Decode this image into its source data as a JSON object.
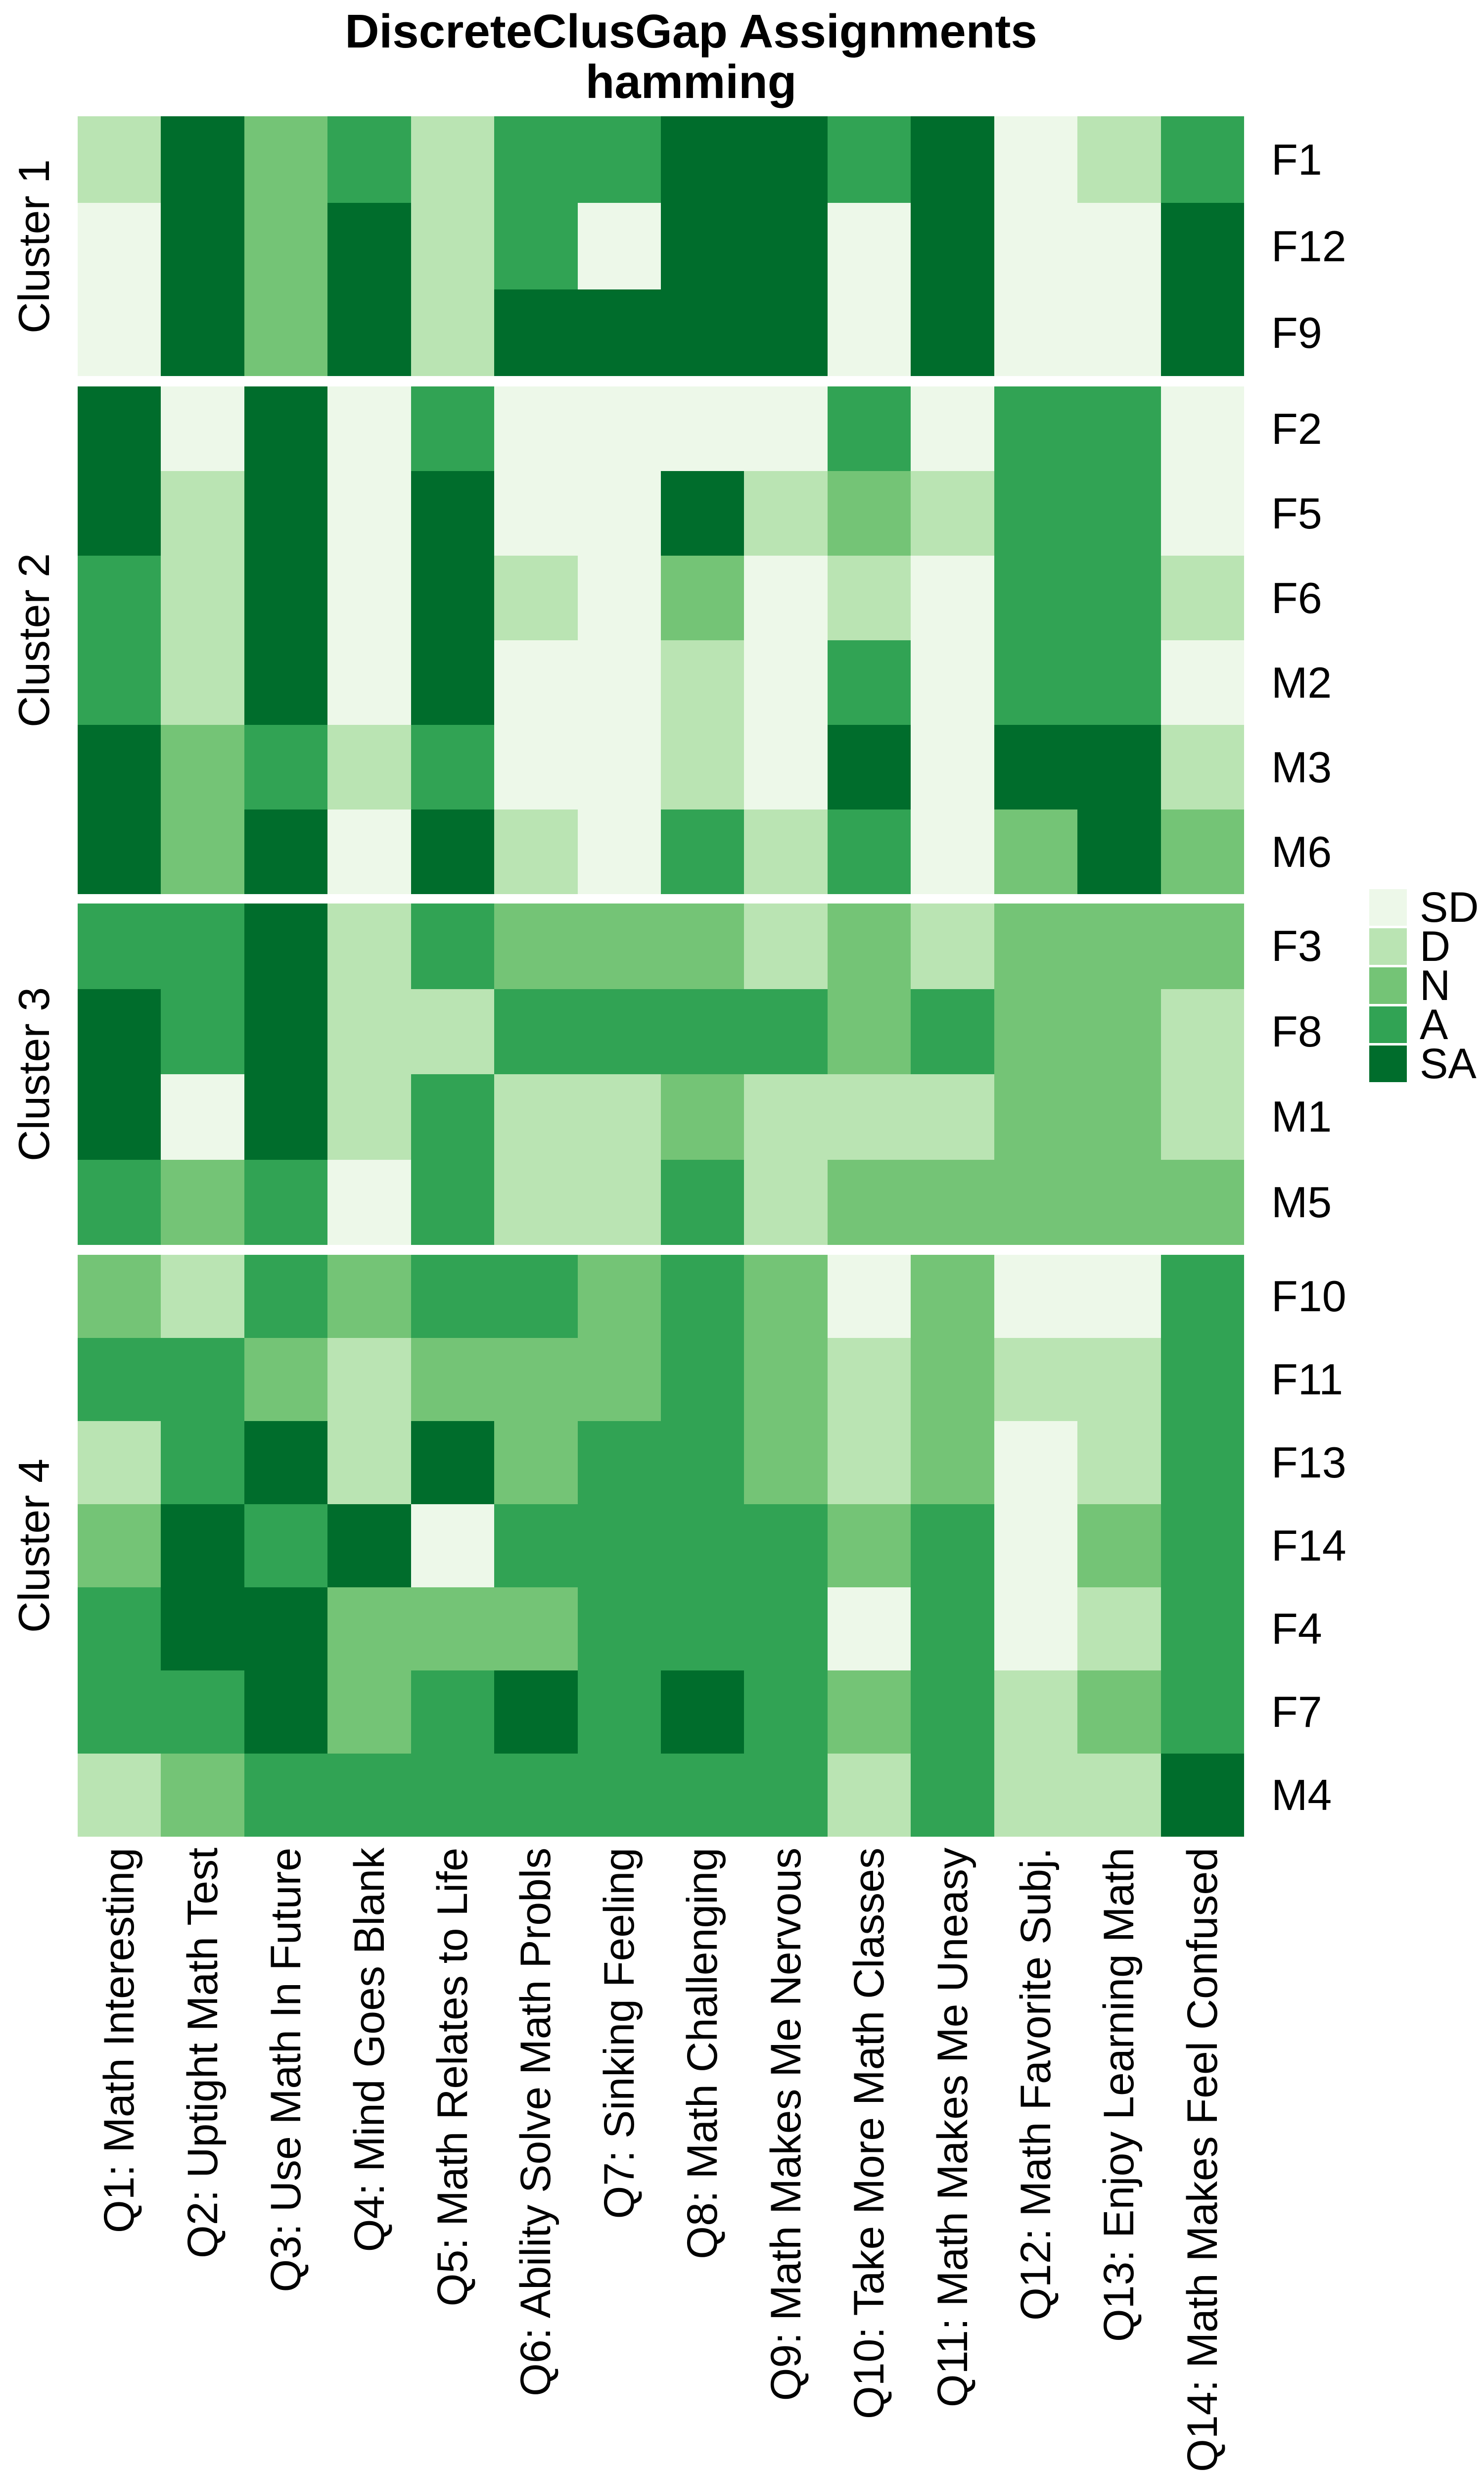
{
  "title": {
    "line1": "DiscreteClusGap Assignments",
    "line2": "hamming"
  },
  "chart_data": {
    "type": "heatmap",
    "title": "DiscreteClusGap Assignments",
    "subtitle": "hamming",
    "value_scale": [
      "SD",
      "D",
      "N",
      "A",
      "SA"
    ],
    "colors": {
      "SD": "#EDF8E9",
      "D": "#BAE4B3",
      "N": "#74C476",
      "A": "#31A354",
      "SA": "#006D2C"
    },
    "legend": {
      "position": "right",
      "labels": [
        "SD",
        "D",
        "N",
        "A",
        "SA"
      ]
    },
    "x_labels": [
      "Q1: Math Interesting",
      "Q2: Uptight Math Test",
      "Q3: Use Math In Future",
      "Q4: Mind Goes Blank",
      "Q5: Math Relates to Life",
      "Q6: Ability Solve Math Probls",
      "Q7: Sinking Feeling",
      "Q8: Math Challenging",
      "Q9: Math Makes Me Nervous",
      "Q10: Take More Math Classes",
      "Q11: Math Makes Me Uneasy",
      "Q12: Math Favorite Subj.",
      "Q13: Enjoy Learning Math",
      "Q14: Math Makes Feel Confused"
    ],
    "clusters": [
      {
        "name": "Cluster 1",
        "rows": [
          {
            "id": "F1",
            "values": [
              "D",
              "SA",
              "N",
              "A",
              "D",
              "A",
              "A",
              "SA",
              "SA",
              "A",
              "SA",
              "SD",
              "D",
              "A"
            ]
          },
          {
            "id": "F12",
            "values": [
              "SD",
              "SA",
              "N",
              "SA",
              "D",
              "A",
              "SD",
              "SA",
              "SA",
              "SD",
              "SA",
              "SD",
              "SD",
              "SA"
            ]
          },
          {
            "id": "F9",
            "values": [
              "SD",
              "SA",
              "N",
              "SA",
              "D",
              "SA",
              "SA",
              "SA",
              "SA",
              "SD",
              "SA",
              "SD",
              "SD",
              "SA"
            ]
          }
        ]
      },
      {
        "name": "Cluster 2",
        "rows": [
          {
            "id": "F2",
            "values": [
              "SA",
              "SD",
              "SA",
              "SD",
              "A",
              "SD",
              "SD",
              "SD",
              "SD",
              "A",
              "SD",
              "A",
              "A",
              "SD"
            ]
          },
          {
            "id": "F5",
            "values": [
              "SA",
              "D",
              "SA",
              "SD",
              "SA",
              "SD",
              "SD",
              "SA",
              "D",
              "N",
              "D",
              "A",
              "A",
              "SD"
            ]
          },
          {
            "id": "F6",
            "values": [
              "A",
              "D",
              "SA",
              "SD",
              "SA",
              "D",
              "SD",
              "N",
              "SD",
              "D",
              "SD",
              "A",
              "A",
              "D"
            ]
          },
          {
            "id": "M2",
            "values": [
              "A",
              "D",
              "SA",
              "SD",
              "SA",
              "SD",
              "SD",
              "D",
              "SD",
              "A",
              "SD",
              "A",
              "A",
              "SD"
            ]
          },
          {
            "id": "M3",
            "values": [
              "SA",
              "N",
              "A",
              "D",
              "A",
              "SD",
              "SD",
              "D",
              "SD",
              "SA",
              "SD",
              "SA",
              "SA",
              "D"
            ]
          },
          {
            "id": "M6",
            "values": [
              "SA",
              "N",
              "SA",
              "SD",
              "SA",
              "D",
              "SD",
              "A",
              "D",
              "A",
              "SD",
              "N",
              "SA",
              "N"
            ]
          }
        ]
      },
      {
        "name": "Cluster 3",
        "rows": [
          {
            "id": "F3",
            "values": [
              "A",
              "A",
              "SA",
              "D",
              "A",
              "N",
              "N",
              "N",
              "D",
              "N",
              "D",
              "N",
              "N",
              "N"
            ]
          },
          {
            "id": "F8",
            "values": [
              "SA",
              "A",
              "SA",
              "D",
              "D",
              "A",
              "A",
              "A",
              "A",
              "N",
              "A",
              "N",
              "N",
              "D"
            ]
          },
          {
            "id": "M1",
            "values": [
              "SA",
              "SD",
              "SA",
              "D",
              "A",
              "D",
              "D",
              "N",
              "D",
              "D",
              "D",
              "N",
              "N",
              "D"
            ]
          },
          {
            "id": "M5",
            "values": [
              "A",
              "N",
              "A",
              "SD",
              "A",
              "D",
              "D",
              "A",
              "D",
              "N",
              "N",
              "N",
              "N",
              "N"
            ]
          }
        ]
      },
      {
        "name": "Cluster 4",
        "rows": [
          {
            "id": "F10",
            "values": [
              "N",
              "D",
              "A",
              "N",
              "A",
              "A",
              "N",
              "A",
              "N",
              "SD",
              "N",
              "SD",
              "SD",
              "A"
            ]
          },
          {
            "id": "F11",
            "values": [
              "A",
              "A",
              "N",
              "D",
              "N",
              "N",
              "N",
              "A",
              "N",
              "D",
              "N",
              "D",
              "D",
              "A"
            ]
          },
          {
            "id": "F13",
            "values": [
              "D",
              "A",
              "SA",
              "D",
              "SA",
              "N",
              "A",
              "A",
              "N",
              "D",
              "N",
              "SD",
              "D",
              "A"
            ]
          },
          {
            "id": "F14",
            "values": [
              "N",
              "SA",
              "A",
              "SA",
              "SD",
              "A",
              "A",
              "A",
              "A",
              "N",
              "A",
              "SD",
              "N",
              "A"
            ]
          },
          {
            "id": "F4",
            "values": [
              "A",
              "SA",
              "SA",
              "N",
              "N",
              "N",
              "A",
              "A",
              "A",
              "SD",
              "A",
              "SD",
              "D",
              "A"
            ]
          },
          {
            "id": "F7",
            "values": [
              "A",
              "A",
              "SA",
              "N",
              "A",
              "SA",
              "A",
              "SA",
              "A",
              "N",
              "A",
              "D",
              "N",
              "A"
            ]
          },
          {
            "id": "M4",
            "values": [
              "D",
              "N",
              "A",
              "A",
              "A",
              "A",
              "A",
              "A",
              "A",
              "D",
              "A",
              "D",
              "D",
              "SA"
            ]
          }
        ]
      }
    ]
  }
}
